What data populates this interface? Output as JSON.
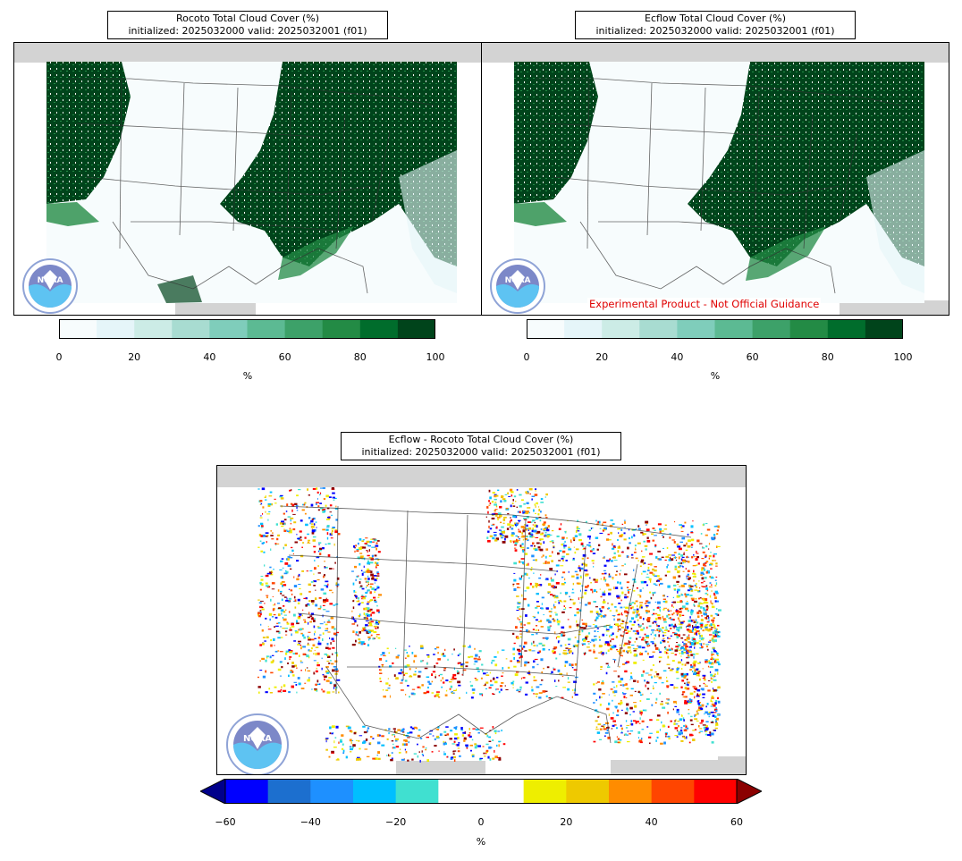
{
  "panels": {
    "rocoto": {
      "title_line1": "Rocoto Total Cloud Cover (%)",
      "title_line2": "initialized: 2025032000 valid: 2025032001 (f01)"
    },
    "ecflow": {
      "title_line1": "Ecflow Total Cloud Cover (%)",
      "title_line2": "initialized: 2025032000 valid: 2025032001 (f01)",
      "watermark": "Experimental Product - Not Official Guidance"
    },
    "diff": {
      "title_line1": "Ecflow - Rocoto Total Cloud Cover (%)",
      "title_line2": "initialized: 2025032000 valid: 2025032001 (f01)"
    }
  },
  "logo": {
    "text": "NOAA",
    "icon": "noaa-logo-icon"
  },
  "colorbar_cloud": {
    "ticks": [
      "0",
      "20",
      "40",
      "60",
      "80",
      "100"
    ],
    "unit": "%",
    "colors": [
      "#f7fcfd",
      "#e5f5f9",
      "#ccece6",
      "#a8dcd1",
      "#7fcdbb",
      "#5cba93",
      "#3da169",
      "#238b45",
      "#006d2c",
      "#00441b"
    ]
  },
  "colorbar_diff": {
    "ticks": [
      "−60",
      "−40",
      "−20",
      "0",
      "20",
      "40",
      "60"
    ],
    "unit": "%",
    "colors": [
      "#0000ff",
      "#1c6fcf",
      "#1e90ff",
      "#00bfff",
      "#40e0d0",
      "#ffffff",
      "#ffffff",
      "#eeee00",
      "#eec900",
      "#ff8c00",
      "#ff4500",
      "#ff0000"
    ],
    "under_color": "#00008b",
    "over_color": "#8b0000"
  }
}
